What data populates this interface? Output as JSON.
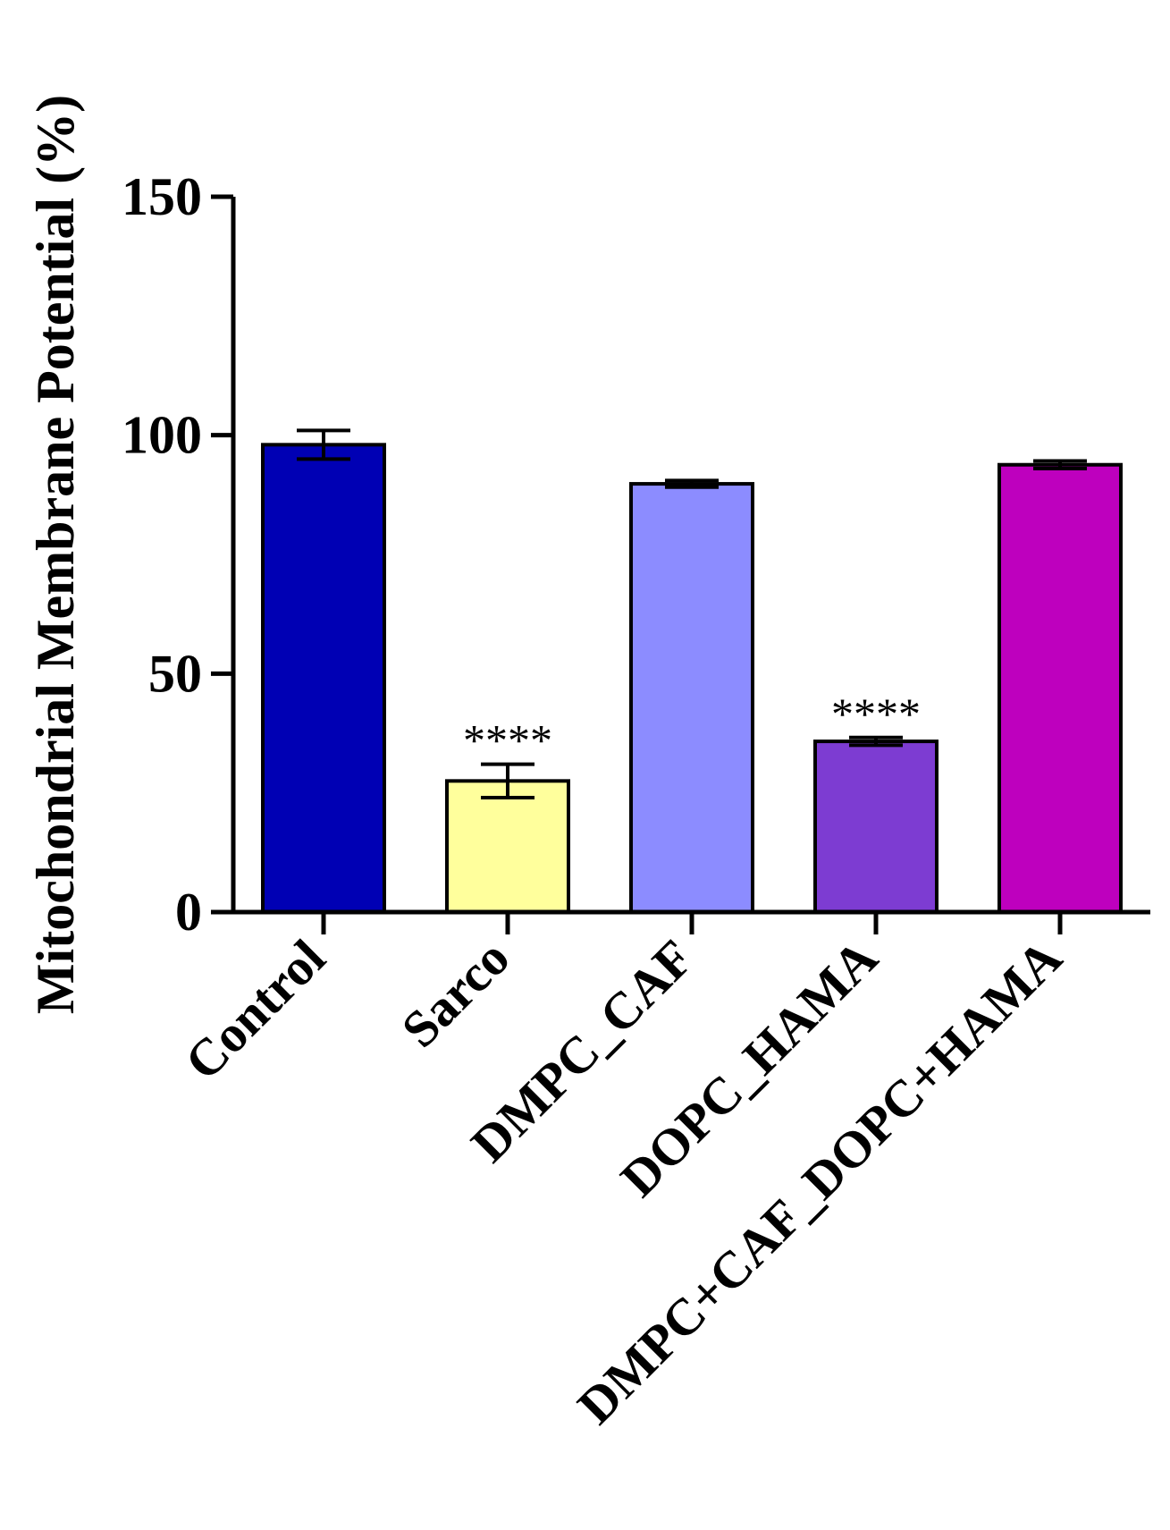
{
  "chart_data": {
    "type": "bar",
    "title": "",
    "xlabel": "",
    "ylabel": "Mitochondrial Membrane Potential (%)",
    "ylim": [
      0,
      150
    ],
    "yticks": [
      0,
      50,
      100,
      150
    ],
    "grid": false,
    "legend": "none",
    "categories": [
      "Control",
      "Sarco",
      "DMPC_CAF",
      "DOPC_HAMA",
      "DMPC+CAF_DOPC+HAMA"
    ],
    "values": [
      98,
      27.5,
      89.8,
      35.8,
      93.8
    ],
    "errors": [
      3,
      3.5,
      0.7,
      0.8,
      0.8
    ],
    "colors": [
      "#0000B4",
      "#FFFF9C",
      "#8C8CFF",
      "#7D3CD2",
      "#BE00BE"
    ],
    "annotations": [
      "",
      "****",
      "",
      "****",
      ""
    ]
  }
}
